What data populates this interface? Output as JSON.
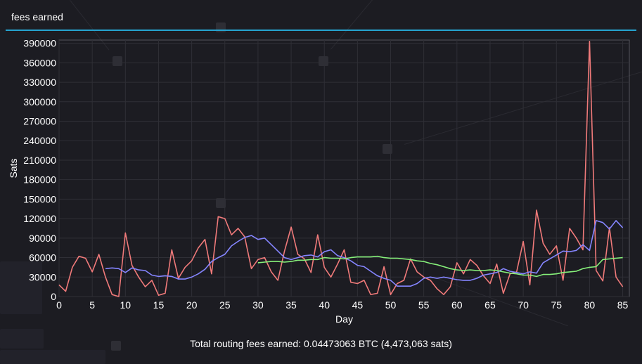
{
  "header": {
    "title": "fees earned"
  },
  "footer": {
    "total_text": "Total routing fees earned: 0.04473063 BTC (4,473,063 sats)"
  },
  "colors": {
    "background": "#1c1c22",
    "accent_rule": "#26a3cf",
    "daily": "#f07a7a",
    "avg_short": "#8585ff",
    "avg_long": "#86f07a",
    "grid": "#2f2f36",
    "axis_text": "#ffffff"
  },
  "chart_data": {
    "type": "line",
    "title": "",
    "xlabel": "Day",
    "ylabel": "Sats",
    "xlim": [
      0,
      86
    ],
    "ylim": [
      0,
      395000
    ],
    "x_ticks": [
      0,
      5,
      10,
      15,
      20,
      25,
      30,
      35,
      40,
      45,
      50,
      55,
      60,
      65,
      70,
      75,
      80,
      85
    ],
    "y_ticks": [
      0,
      30000,
      60000,
      90000,
      120000,
      150000,
      180000,
      210000,
      240000,
      270000,
      300000,
      330000,
      360000,
      390000
    ],
    "grid": true,
    "legend": "none",
    "series": [
      {
        "color": "#f07a7a",
        "x": [
          0,
          1,
          2,
          3,
          4,
          5,
          6,
          7,
          8,
          9,
          10,
          11,
          12,
          13,
          14,
          15,
          16,
          17,
          18,
          19,
          20,
          21,
          22,
          23,
          24,
          25,
          26,
          27,
          28,
          29,
          30,
          31,
          32,
          33,
          34,
          35,
          36,
          37,
          38,
          39,
          40,
          41,
          42,
          43,
          44,
          45,
          46,
          47,
          48,
          49,
          50,
          51,
          52,
          53,
          54,
          55,
          56,
          57,
          58,
          59,
          60,
          61,
          62,
          63,
          64,
          65,
          66,
          67,
          68,
          69,
          70,
          71,
          72,
          73,
          74,
          75,
          76,
          77,
          78,
          79,
          80,
          81,
          82,
          83,
          84,
          85
        ],
        "values": [
          18000,
          8000,
          45000,
          62000,
          59000,
          38000,
          65000,
          30000,
          3000,
          0,
          98000,
          48000,
          30000,
          15000,
          25000,
          2000,
          5000,
          72000,
          28000,
          45000,
          55000,
          75000,
          88000,
          35000,
          123000,
          120000,
          95000,
          105000,
          92000,
          43000,
          57000,
          60000,
          38000,
          25000,
          70000,
          107000,
          65000,
          58000,
          37000,
          95000,
          45000,
          30000,
          50000,
          72000,
          22000,
          20000,
          25000,
          3000,
          5000,
          46000,
          3000,
          20000,
          25000,
          58000,
          38000,
          30000,
          25000,
          12000,
          3000,
          15000,
          52000,
          35000,
          57000,
          48000,
          32000,
          20000,
          50000,
          5000,
          35000,
          38000,
          85000,
          18000,
          133000,
          82000,
          65000,
          78000,
          25000,
          105000,
          90000,
          72000,
          393000,
          40000,
          24000,
          106000,
          30000,
          15000
        ]
      },
      {
        "color": "#8585ff",
        "x": [
          7,
          8,
          9,
          10,
          11,
          12,
          13,
          14,
          15,
          16,
          17,
          18,
          19,
          20,
          21,
          22,
          23,
          24,
          25,
          26,
          27,
          28,
          29,
          30,
          31,
          32,
          33,
          34,
          35,
          36,
          37,
          38,
          39,
          40,
          41,
          42,
          43,
          44,
          45,
          46,
          47,
          48,
          49,
          50,
          51,
          52,
          53,
          54,
          55,
          56,
          57,
          58,
          59,
          60,
          61,
          62,
          63,
          64,
          65,
          66,
          67,
          68,
          69,
          70,
          71,
          72,
          73,
          74,
          75,
          76,
          77,
          78,
          79,
          80,
          81,
          82,
          83,
          84,
          85
        ],
        "values": [
          43000,
          44000,
          43000,
          37000,
          44000,
          41000,
          40000,
          33000,
          31000,
          32000,
          31000,
          27000,
          27000,
          30000,
          35000,
          42000,
          54000,
          60000,
          65000,
          78000,
          85000,
          91000,
          94000,
          88000,
          90000,
          80000,
          70000,
          60000,
          57000,
          60000,
          63000,
          64000,
          61000,
          69000,
          72000,
          63000,
          60000,
          55000,
          48000,
          46000,
          39000,
          32000,
          28000,
          25000,
          16000,
          16000,
          16000,
          20000,
          28000,
          30000,
          28000,
          30000,
          28000,
          26000,
          25000,
          25000,
          28000,
          33000,
          35000,
          37000,
          43000,
          39000,
          37000,
          35000,
          38000,
          36000,
          52000,
          58000,
          64000,
          70000,
          69000,
          71000,
          80000,
          71000,
          117000,
          114000,
          104000,
          117000,
          106000
        ]
      },
      {
        "color": "#86f07a",
        "x": [
          30,
          31,
          32,
          33,
          34,
          35,
          36,
          37,
          38,
          39,
          40,
          41,
          42,
          43,
          44,
          45,
          46,
          47,
          48,
          49,
          50,
          51,
          52,
          53,
          54,
          55,
          56,
          57,
          58,
          59,
          60,
          61,
          62,
          63,
          64,
          65,
          66,
          67,
          68,
          69,
          70,
          71,
          72,
          73,
          74,
          75,
          76,
          77,
          78,
          79,
          80,
          81,
          82,
          83,
          84,
          85
        ],
        "values": [
          52000,
          53000,
          54000,
          54000,
          53000,
          54000,
          56000,
          56000,
          57000,
          57000,
          60000,
          59000,
          59000,
          58000,
          60000,
          61000,
          61000,
          61000,
          62000,
          60000,
          59000,
          59000,
          58000,
          57000,
          55000,
          54000,
          51000,
          49000,
          46000,
          43000,
          41000,
          40000,
          41000,
          40000,
          40000,
          41000,
          40000,
          38000,
          36000,
          35000,
          33000,
          33000,
          31000,
          34000,
          34000,
          35000,
          37000,
          38000,
          39000,
          43000,
          45000,
          46000,
          57000,
          58000,
          59000,
          60000
        ]
      }
    ]
  }
}
